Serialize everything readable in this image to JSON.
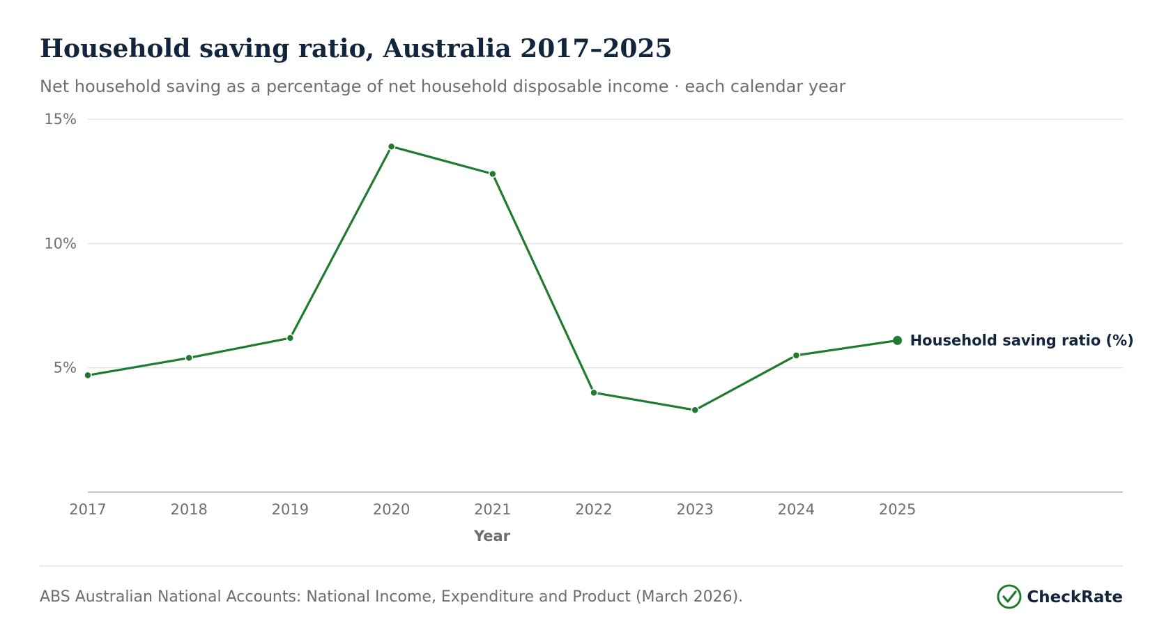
{
  "header": {
    "title": "Household saving ratio, Australia 2017–2025",
    "subtitle": "Net household saving as a percentage of net household disposable income · each calendar year"
  },
  "footer": {
    "source": "ABS Australian National Accounts: National Income, Expenditure and Product (March 2026).",
    "brand": "CheckRate",
    "brand_icon": "check-circle-icon"
  },
  "colors": {
    "series": "#1e7b31",
    "title": "#13243d",
    "muted": "#6b6e73",
    "grid": "#e3e3e3",
    "axis": "#c4c4c4"
  },
  "chart_data": {
    "type": "line",
    "title": "Household saving ratio, Australia 2017–2025",
    "subtitle": "Net household saving as a percentage of net household disposable income · each calendar year",
    "xlabel": "Year",
    "ylabel": "",
    "x": [
      "2017",
      "2018",
      "2019",
      "2020",
      "2021",
      "2022",
      "2023",
      "2024",
      "2025"
    ],
    "ylim": [
      0,
      15
    ],
    "y_ticks": [
      5,
      10,
      15
    ],
    "y_tick_labels": [
      "5%",
      "10%",
      "15%"
    ],
    "grid": true,
    "legend": "direct label at end of line",
    "series": [
      {
        "name": "Household saving ratio (%)",
        "color": "#1e7b31",
        "values": [
          4.7,
          5.4,
          6.2,
          13.9,
          12.8,
          4.0,
          3.3,
          5.5,
          6.1
        ]
      }
    ]
  }
}
